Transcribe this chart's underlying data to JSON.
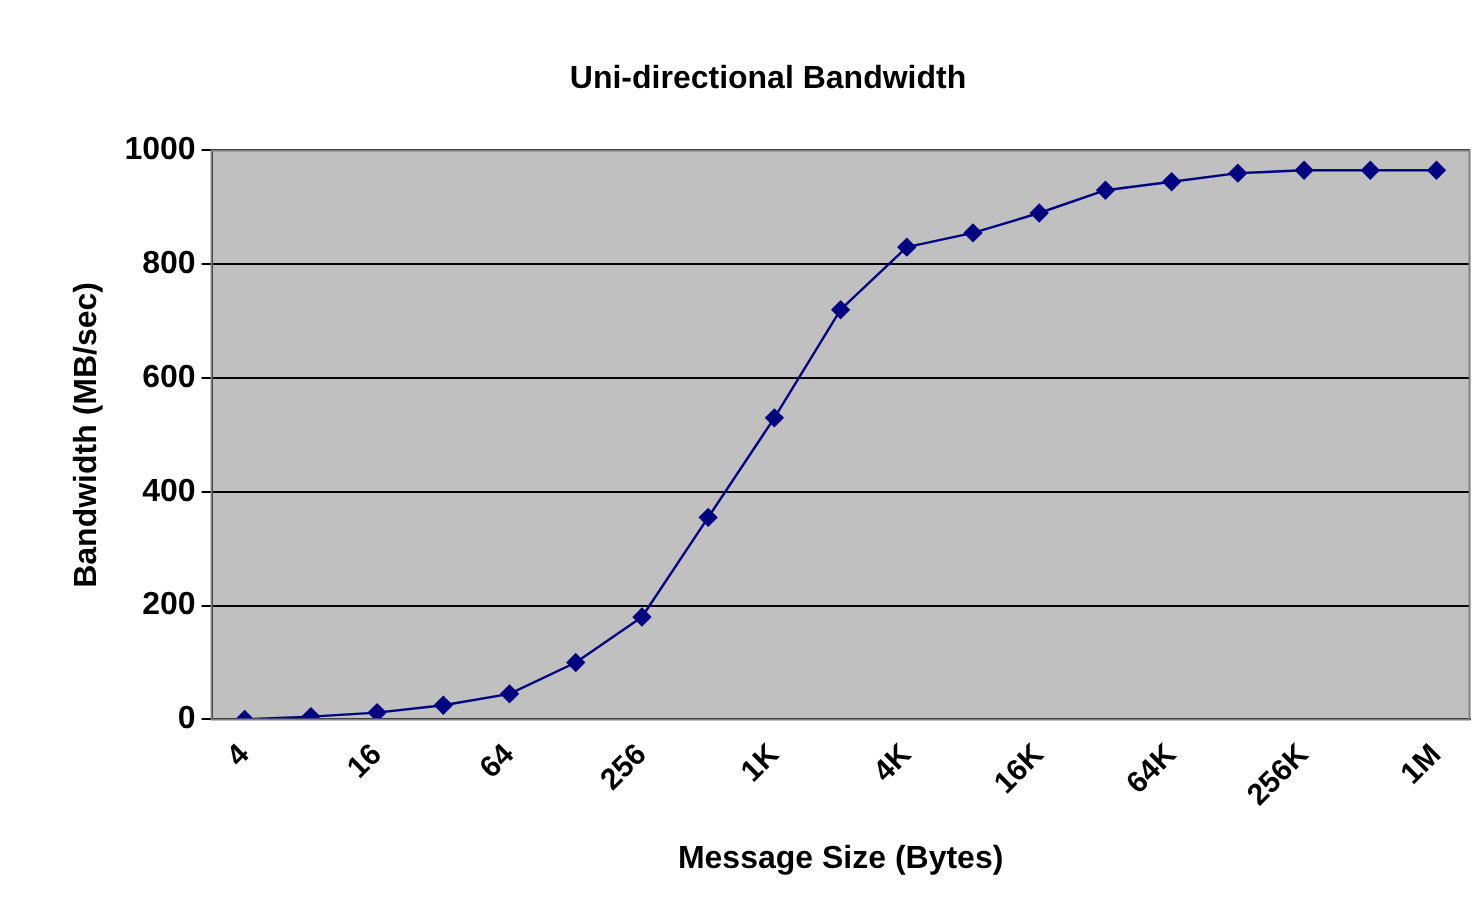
{
  "chart_data": {
    "type": "line",
    "title": "Uni-directional Bandwidth",
    "xlabel": "Message Size (Bytes)",
    "ylabel": "Bandwidth (MB/sec)",
    "categories": [
      "4",
      null,
      "16",
      null,
      "64",
      null,
      "256",
      null,
      "1K",
      null,
      "4K",
      null,
      "16K",
      null,
      "64K",
      null,
      "256K",
      null,
      "1M"
    ],
    "series": [
      {
        "color": "#000080",
        "values": [
          0,
          5,
          12,
          25,
          45,
          100,
          180,
          355,
          530,
          720,
          830,
          855,
          890,
          930,
          945,
          960,
          965,
          965,
          965
        ]
      }
    ],
    "ylim": [
      0,
      1000
    ],
    "yticks": [
      0,
      200,
      400,
      600,
      800,
      1000
    ],
    "grid": "y",
    "legend": false,
    "marker": "diamond",
    "line_style": "solid"
  }
}
